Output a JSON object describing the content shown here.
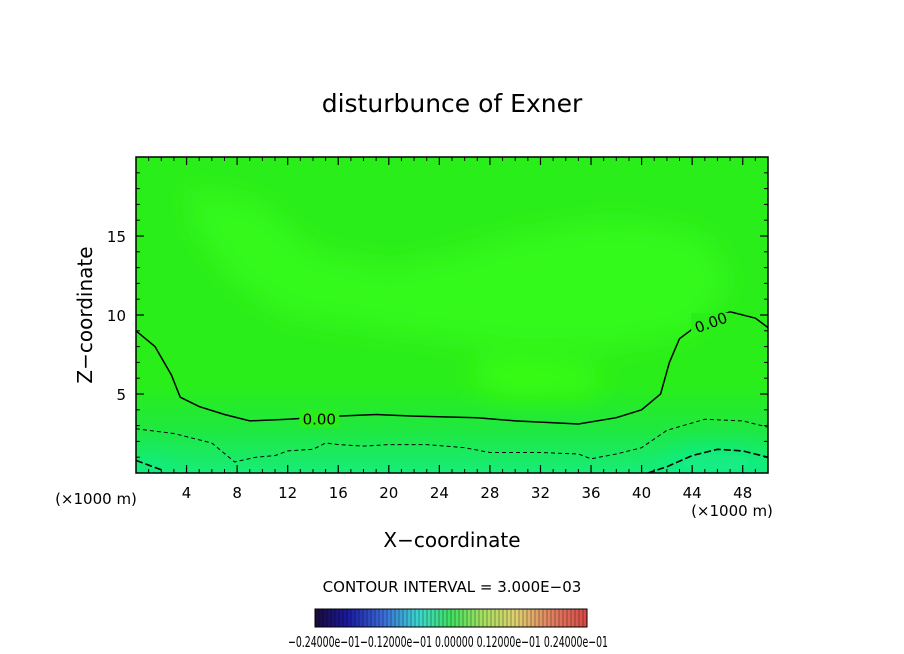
{
  "chart_data": {
    "type": "heatmap",
    "title": "disturbunce of Exner",
    "xlabel": "X−coordinate",
    "ylabel": "Z−coordinate",
    "x_unit_left": "(×1000 m)",
    "x_unit_right": "(×1000 m)",
    "xlim": [
      0,
      50
    ],
    "ylim": [
      0,
      20
    ],
    "x_ticks": [
      4,
      8,
      12,
      16,
      20,
      24,
      28,
      32,
      36,
      40,
      44,
      48
    ],
    "y_ticks": [
      5,
      10,
      15
    ],
    "contour_interval_label": "CONTOUR INTERVAL = 3.000E−03",
    "colorbar_labels": "−0.24000e−01−0.12000e−01 0.00000 0.12000e−01 0.24000e−01",
    "grid": false,
    "contours": [
      {
        "level": 0.0,
        "label": "0.00",
        "style": "solid",
        "points": [
          [
            0,
            9.0
          ],
          [
            1.5,
            8.0
          ],
          [
            2.8,
            6.2
          ],
          [
            3.5,
            4.8
          ],
          [
            5,
            4.2
          ],
          [
            7,
            3.7
          ],
          [
            9,
            3.3
          ],
          [
            12,
            3.4
          ],
          [
            16,
            3.6
          ],
          [
            19,
            3.7
          ],
          [
            22,
            3.6
          ],
          [
            27,
            3.5
          ],
          [
            30,
            3.3
          ],
          [
            35,
            3.1
          ],
          [
            38,
            3.5
          ],
          [
            40,
            4.0
          ],
          [
            41.5,
            5.0
          ],
          [
            42.2,
            7.0
          ],
          [
            43,
            8.5
          ],
          [
            44.5,
            9.4
          ],
          [
            47,
            10.2
          ],
          [
            49,
            9.8
          ],
          [
            50,
            9.2
          ]
        ],
        "label_positions": [
          [
            14.5,
            3.4
          ],
          [
            45.5,
            9.5
          ]
        ]
      },
      {
        "level": -0.003,
        "style": "dashed",
        "points": [
          [
            0,
            2.8
          ],
          [
            3,
            2.5
          ],
          [
            6,
            1.9
          ],
          [
            7.8,
            0.7
          ],
          [
            9.5,
            1.0
          ],
          [
            11,
            1.1
          ],
          [
            12,
            1.4
          ],
          [
            14,
            1.5
          ],
          [
            15,
            1.9
          ],
          [
            16,
            1.8
          ],
          [
            18,
            1.7
          ],
          [
            20,
            1.8
          ],
          [
            23,
            1.8
          ],
          [
            26,
            1.6
          ],
          [
            28,
            1.3
          ],
          [
            32,
            1.3
          ],
          [
            35,
            1.2
          ],
          [
            36,
            0.9
          ],
          [
            38,
            1.2
          ],
          [
            40,
            1.6
          ],
          [
            42,
            2.7
          ],
          [
            45,
            3.4
          ],
          [
            48,
            3.3
          ],
          [
            50,
            2.9
          ]
        ]
      },
      {
        "level": -0.006,
        "style": "dashed",
        "points": [
          [
            0,
            0.8
          ],
          [
            2,
            0.2
          ]
        ]
      },
      {
        "level": -0.006,
        "style": "dashed",
        "points": [
          [
            40.5,
            0.0
          ],
          [
            42,
            0.4
          ],
          [
            44,
            1.1
          ],
          [
            46,
            1.5
          ],
          [
            48,
            1.4
          ],
          [
            50,
            1.0
          ]
        ]
      }
    ],
    "colors": {
      "field_main": "#2aee1a",
      "field_light": "#37ff1f",
      "field_core": "#3cff08",
      "field_lower": "#1fe83f",
      "field_bottom": "#17ec78",
      "field_deep": "#12ee9f"
    }
  }
}
